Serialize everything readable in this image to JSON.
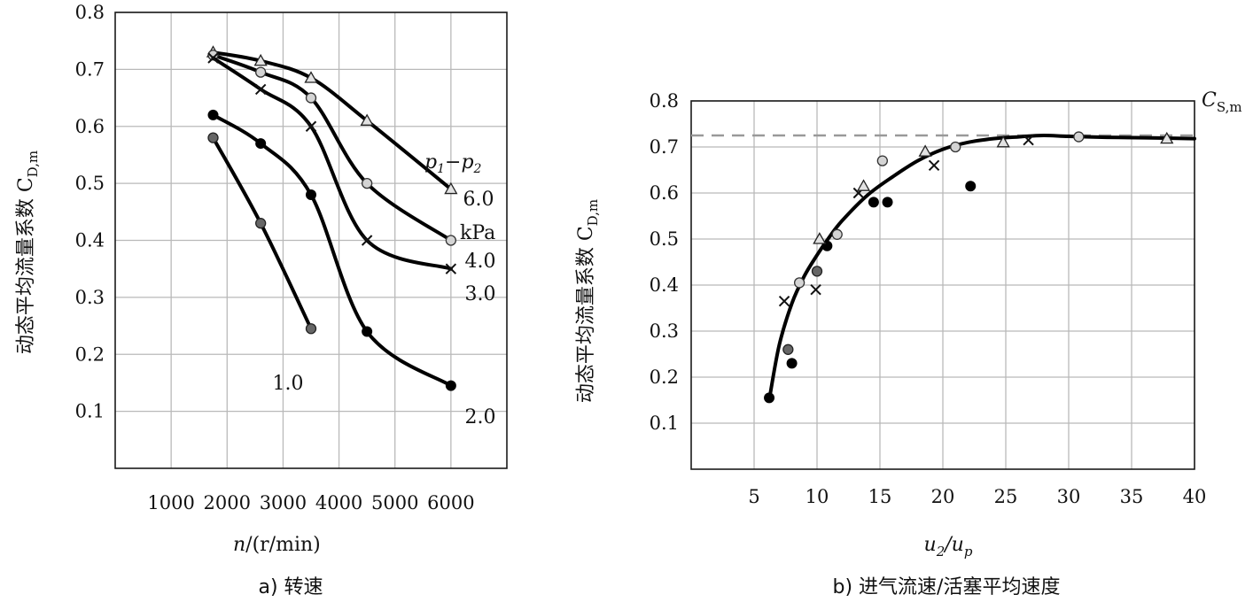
{
  "chart_data": [
    {
      "id": "a",
      "type": "line",
      "caption": "a) 转速",
      "xlabel": "n",
      "xunit": "/(r/min)",
      "ylabel": "动态平均流量系数 C",
      "ysub": "D,m",
      "xlim": [
        0,
        7000
      ],
      "ylim": [
        0,
        0.8
      ],
      "xticks": [
        1000,
        2000,
        3000,
        4000,
        5000,
        6000
      ],
      "yticks": [
        0.1,
        0.2,
        0.3,
        0.4,
        0.5,
        0.6,
        0.7,
        0.8
      ],
      "legend_title": "p1−p2",
      "legend_title_parts": [
        "p",
        "1",
        "−p",
        "2"
      ],
      "unit_label": "kPa",
      "series": [
        {
          "name": "6.0",
          "marker": "triangle",
          "x": [
            1750,
            2600,
            3500,
            4500,
            6000
          ],
          "y": [
            0.73,
            0.715,
            0.685,
            0.61,
            0.49
          ]
        },
        {
          "name": "4.0",
          "marker": "open-circle",
          "x": [
            1750,
            2600,
            3500,
            4500,
            6000
          ],
          "y": [
            0.725,
            0.695,
            0.65,
            0.5,
            0.4
          ]
        },
        {
          "name": "3.0",
          "marker": "cross",
          "x": [
            1750,
            2600,
            3500,
            4500,
            6000
          ],
          "y": [
            0.72,
            0.665,
            0.6,
            0.4,
            0.35
          ]
        },
        {
          "name": "2.0",
          "marker": "filled-circle",
          "x": [
            1750,
            2600,
            3500,
            4500,
            6000
          ],
          "y": [
            0.62,
            0.57,
            0.48,
            0.24,
            0.145
          ]
        },
        {
          "name": "1.0",
          "marker": "gray-circle",
          "x": [
            1750,
            2600,
            3500
          ],
          "y": [
            0.58,
            0.43,
            0.245
          ]
        }
      ]
    },
    {
      "id": "b",
      "type": "scatter",
      "caption": "b) 进气流速/活塞平均速度",
      "xlabel": "u2/up",
      "xlabel_parts": [
        "u",
        "2",
        "/u",
        "p"
      ],
      "ylabel": "动态平均流量系数 C",
      "ysub": "D,m",
      "ref_label": "C",
      "ref_sub": "S,m",
      "ref_value": 0.725,
      "xlim": [
        0,
        40
      ],
      "ylim": [
        0,
        0.8
      ],
      "xticks": [
        5,
        10,
        15,
        20,
        25,
        30,
        35,
        40
      ],
      "yticks": [
        0.1,
        0.2,
        0.3,
        0.4,
        0.5,
        0.6,
        0.7,
        0.8
      ],
      "fit_curve": {
        "x": [
          6.2,
          7,
          8,
          9,
          10,
          11,
          12,
          14,
          16,
          18,
          20,
          22,
          24,
          26,
          28,
          30,
          33,
          36,
          40
        ],
        "y": [
          0.15,
          0.27,
          0.36,
          0.42,
          0.465,
          0.505,
          0.54,
          0.595,
          0.635,
          0.67,
          0.695,
          0.71,
          0.718,
          0.722,
          0.725,
          0.723,
          0.721,
          0.72,
          0.718
        ]
      },
      "points": [
        {
          "marker": "filled-circle",
          "x": [
            6.2,
            8.0,
            10.8,
            14.5,
            15.6,
            22.2
          ],
          "y": [
            0.155,
            0.23,
            0.485,
            0.58,
            0.58,
            0.615
          ]
        },
        {
          "marker": "gray-circle",
          "x": [
            7.7,
            10.0
          ],
          "y": [
            0.26,
            0.43
          ]
        },
        {
          "marker": "cross",
          "x": [
            7.4,
            9.9,
            13.3,
            19.3,
            26.8
          ],
          "y": [
            0.365,
            0.39,
            0.6,
            0.66,
            0.715
          ]
        },
        {
          "marker": "open-circle",
          "x": [
            8.6,
            11.6,
            15.2,
            21.0,
            30.8
          ],
          "y": [
            0.405,
            0.51,
            0.67,
            0.7,
            0.722
          ]
        },
        {
          "marker": "triangle",
          "x": [
            10.2,
            13.7,
            18.6,
            24.8,
            37.8
          ],
          "y": [
            0.5,
            0.615,
            0.69,
            0.71,
            0.718
          ]
        }
      ]
    }
  ]
}
